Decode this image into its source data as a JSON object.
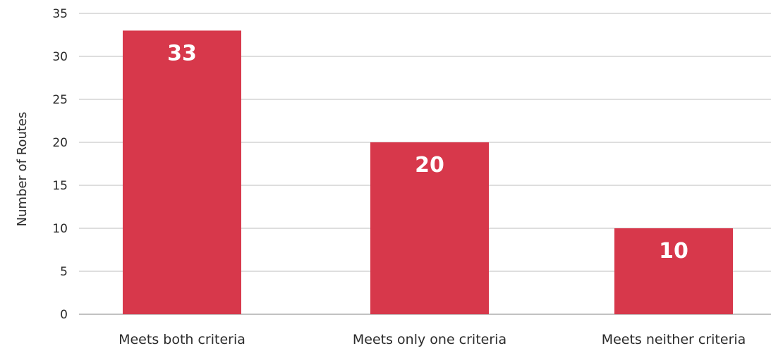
{
  "chart_data": {
    "type": "bar",
    "title": "",
    "xlabel": "",
    "ylabel": "Number of Routes",
    "categories": [
      "Meets both criteria",
      "Meets only one criteria",
      "Meets neither criteria"
    ],
    "values": [
      33,
      20,
      10
    ],
    "data_labels": [
      "33",
      "20",
      "10"
    ],
    "ylim": [
      0,
      35
    ],
    "yticks": [
      0,
      5,
      10,
      15,
      20,
      25,
      30,
      35
    ],
    "grid": true,
    "legend": "none",
    "bar_color": "#d7384b"
  }
}
